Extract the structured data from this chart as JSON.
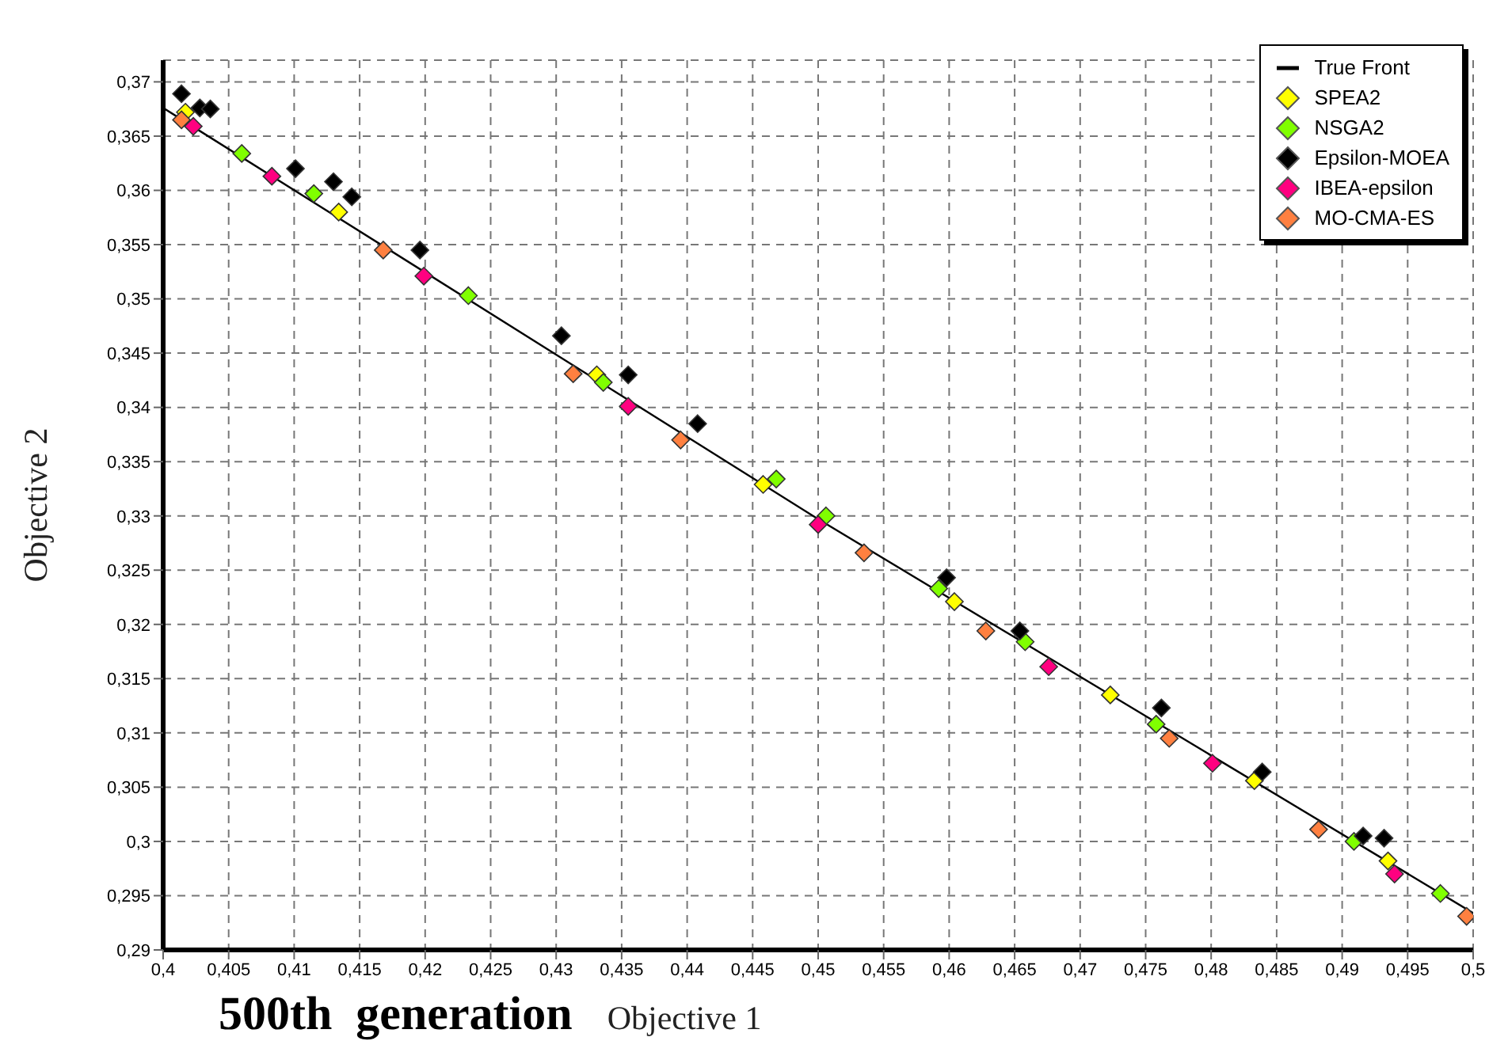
{
  "chart_data": {
    "type": "scatter",
    "xlabel": "Objective 1",
    "ylabel": "Objective 2",
    "annotations": [
      "500th  generation"
    ],
    "xlim": [
      0.4,
      0.5
    ],
    "ylim": [
      0.29,
      0.372
    ],
    "xticks": [
      {
        "value": 0.4,
        "label": "0,4"
      },
      {
        "value": 0.405,
        "label": "0,405"
      },
      {
        "value": 0.41,
        "label": "0,41"
      },
      {
        "value": 0.415,
        "label": "0,415"
      },
      {
        "value": 0.42,
        "label": "0,42"
      },
      {
        "value": 0.425,
        "label": "0,425"
      },
      {
        "value": 0.43,
        "label": "0,43"
      },
      {
        "value": 0.435,
        "label": "0,435"
      },
      {
        "value": 0.44,
        "label": "0,44"
      },
      {
        "value": 0.445,
        "label": "0,445"
      },
      {
        "value": 0.45,
        "label": "0,45"
      },
      {
        "value": 0.455,
        "label": "0,455"
      },
      {
        "value": 0.46,
        "label": "0,46"
      },
      {
        "value": 0.465,
        "label": "0,465"
      },
      {
        "value": 0.47,
        "label": "0,47"
      },
      {
        "value": 0.475,
        "label": "0,475"
      },
      {
        "value": 0.48,
        "label": "0,48"
      },
      {
        "value": 0.485,
        "label": "0,485"
      },
      {
        "value": 0.49,
        "label": "0,49"
      },
      {
        "value": 0.495,
        "label": "0,495"
      },
      {
        "value": 0.5,
        "label": "0,5"
      }
    ],
    "yticks": [
      {
        "value": 0.29,
        "label": "0,29"
      },
      {
        "value": 0.295,
        "label": "0,295"
      },
      {
        "value": 0.3,
        "label": "0,3"
      },
      {
        "value": 0.305,
        "label": "0,305"
      },
      {
        "value": 0.31,
        "label": "0,31"
      },
      {
        "value": 0.315,
        "label": "0,315"
      },
      {
        "value": 0.32,
        "label": "0,32"
      },
      {
        "value": 0.325,
        "label": "0,325"
      },
      {
        "value": 0.33,
        "label": "0,33"
      },
      {
        "value": 0.335,
        "label": "0,335"
      },
      {
        "value": 0.34,
        "label": "0,34"
      },
      {
        "value": 0.345,
        "label": "0,345"
      },
      {
        "value": 0.35,
        "label": "0,35"
      },
      {
        "value": 0.355,
        "label": "0,355"
      },
      {
        "value": 0.36,
        "label": "0,36"
      },
      {
        "value": 0.365,
        "label": "0,365"
      },
      {
        "value": 0.37,
        "label": "0,37"
      }
    ],
    "grid": true,
    "legend": "top right",
    "series": [
      {
        "name": "True Front",
        "type": "line",
        "color": "#000000",
        "x": [
          0.4,
          0.45,
          0.5
        ],
        "values": [
          0.3676,
          0.3297,
          0.2934
        ]
      },
      {
        "name": "SPEA2",
        "color": "#ffff00",
        "marker": "diamond",
        "x": [
          0.4017,
          0.4134,
          0.4331,
          0.4458,
          0.4604,
          0.4723,
          0.4833,
          0.4935
        ],
        "values": [
          0.3672,
          0.358,
          0.343,
          0.3329,
          0.3221,
          0.3135,
          0.3056,
          0.2982
        ]
      },
      {
        "name": "NSGA2",
        "color": "#80ff00",
        "marker": "diamond",
        "x": [
          0.406,
          0.4115,
          0.4233,
          0.4336,
          0.4468,
          0.4506,
          0.4592,
          0.4658,
          0.4758,
          0.4909,
          0.4975
        ],
        "values": [
          0.3634,
          0.3597,
          0.3503,
          0.3423,
          0.3334,
          0.33,
          0.3233,
          0.3184,
          0.3108,
          0.3,
          0.2952
        ]
      },
      {
        "name": "Epsilon-MOEA",
        "color": "#000000",
        "marker": "diamond",
        "x": [
          0.4014,
          0.4028,
          0.4036,
          0.4101,
          0.413,
          0.4144,
          0.4196,
          0.4304,
          0.4355,
          0.4408,
          0.4598,
          0.4654,
          0.4762,
          0.4839,
          0.4916,
          0.4932
        ],
        "values": [
          0.3689,
          0.3676,
          0.3675,
          0.362,
          0.3608,
          0.3594,
          0.3545,
          0.3466,
          0.343,
          0.3385,
          0.3243,
          0.3194,
          0.3123,
          0.3064,
          0.3005,
          0.3003
        ]
      },
      {
        "name": "IBEA-epsilon",
        "color": "#ff0080",
        "marker": "diamond",
        "x": [
          0.4023,
          0.4083,
          0.4199,
          0.4355,
          0.45,
          0.4676,
          0.4801,
          0.494
        ],
        "values": [
          0.3659,
          0.3613,
          0.3521,
          0.3401,
          0.3292,
          0.3161,
          0.3072,
          0.297
        ]
      },
      {
        "name": "MO-CMA-ES",
        "color": "#ff8040",
        "marker": "diamond",
        "x": [
          0.4014,
          0.4168,
          0.4313,
          0.4395,
          0.4535,
          0.4628,
          0.4768,
          0.4882,
          0.4995
        ],
        "values": [
          0.3665,
          0.3545,
          0.3431,
          0.337,
          0.3266,
          0.3194,
          0.3095,
          0.3011,
          0.2931
        ]
      }
    ]
  }
}
